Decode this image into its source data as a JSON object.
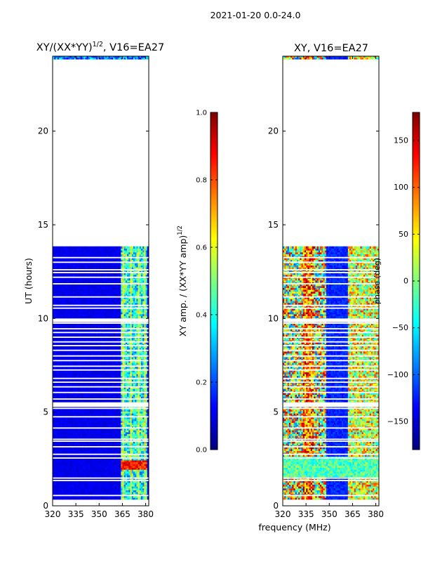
{
  "figure": {
    "suptitle": "2021-01-20 0.0-24.0",
    "colormap": [
      "#00007f",
      "#0000ff",
      "#007fff",
      "#00ffff",
      "#7fff7f",
      "#ffff00",
      "#ff7f00",
      "#ff0000",
      "#7f0000"
    ]
  },
  "chart_data": [
    {
      "type": "heatmap",
      "title_main": "XY/(XX*YY)",
      "title_sup": "1/2",
      "title_rest": ", V16=EA27",
      "xlabel": "",
      "ylabel": "UT (hours)",
      "xlim": [
        320,
        382
      ],
      "ylim": [
        0,
        24
      ],
      "xticks": [
        320,
        335,
        350,
        365,
        380
      ],
      "yticks": [
        0,
        5,
        10,
        15,
        20
      ],
      "data_coverage_hours": [
        [
          0.35,
          13.85
        ],
        [
          23.85,
          24.0
        ]
      ],
      "colorbar": {
        "label_main": "XY amp. / (XX*YY amp)",
        "label_sup": "1/2",
        "min": 0.0,
        "max": 1.0,
        "ticks": [
          {
            "value": 0.0,
            "label": "0.0"
          },
          {
            "value": 0.2,
            "label": "0.2"
          },
          {
            "value": 0.4,
            "label": "0.4"
          },
          {
            "value": 0.6,
            "label": "0.6"
          },
          {
            "value": 0.8,
            "label": "0.8"
          },
          {
            "value": 1.0,
            "label": "1.0"
          }
        ]
      }
    },
    {
      "type": "heatmap",
      "title_main": "XY, V16=EA27",
      "title_sup": "",
      "title_rest": "",
      "xlabel": "frequency (MHz)",
      "ylabel": "",
      "xlim": [
        320,
        382
      ],
      "ylim": [
        0,
        24
      ],
      "xticks": [
        320,
        335,
        350,
        365,
        380
      ],
      "yticks": [
        0,
        5,
        10,
        15,
        20
      ],
      "data_coverage_hours": [
        [
          0.35,
          13.85
        ],
        [
          23.85,
          24.0
        ]
      ],
      "colorbar": {
        "label_main": "phase (deg)",
        "label_sup": "",
        "min": -180,
        "max": 180,
        "ticks": [
          {
            "value": -150,
            "label": "−150"
          },
          {
            "value": -100,
            "label": "−100"
          },
          {
            "value": -50,
            "label": "−50"
          },
          {
            "value": 0,
            "label": "0"
          },
          {
            "value": 50,
            "label": "50"
          },
          {
            "value": 100,
            "label": "100"
          },
          {
            "value": 150,
            "label": "150"
          }
        ]
      }
    }
  ]
}
